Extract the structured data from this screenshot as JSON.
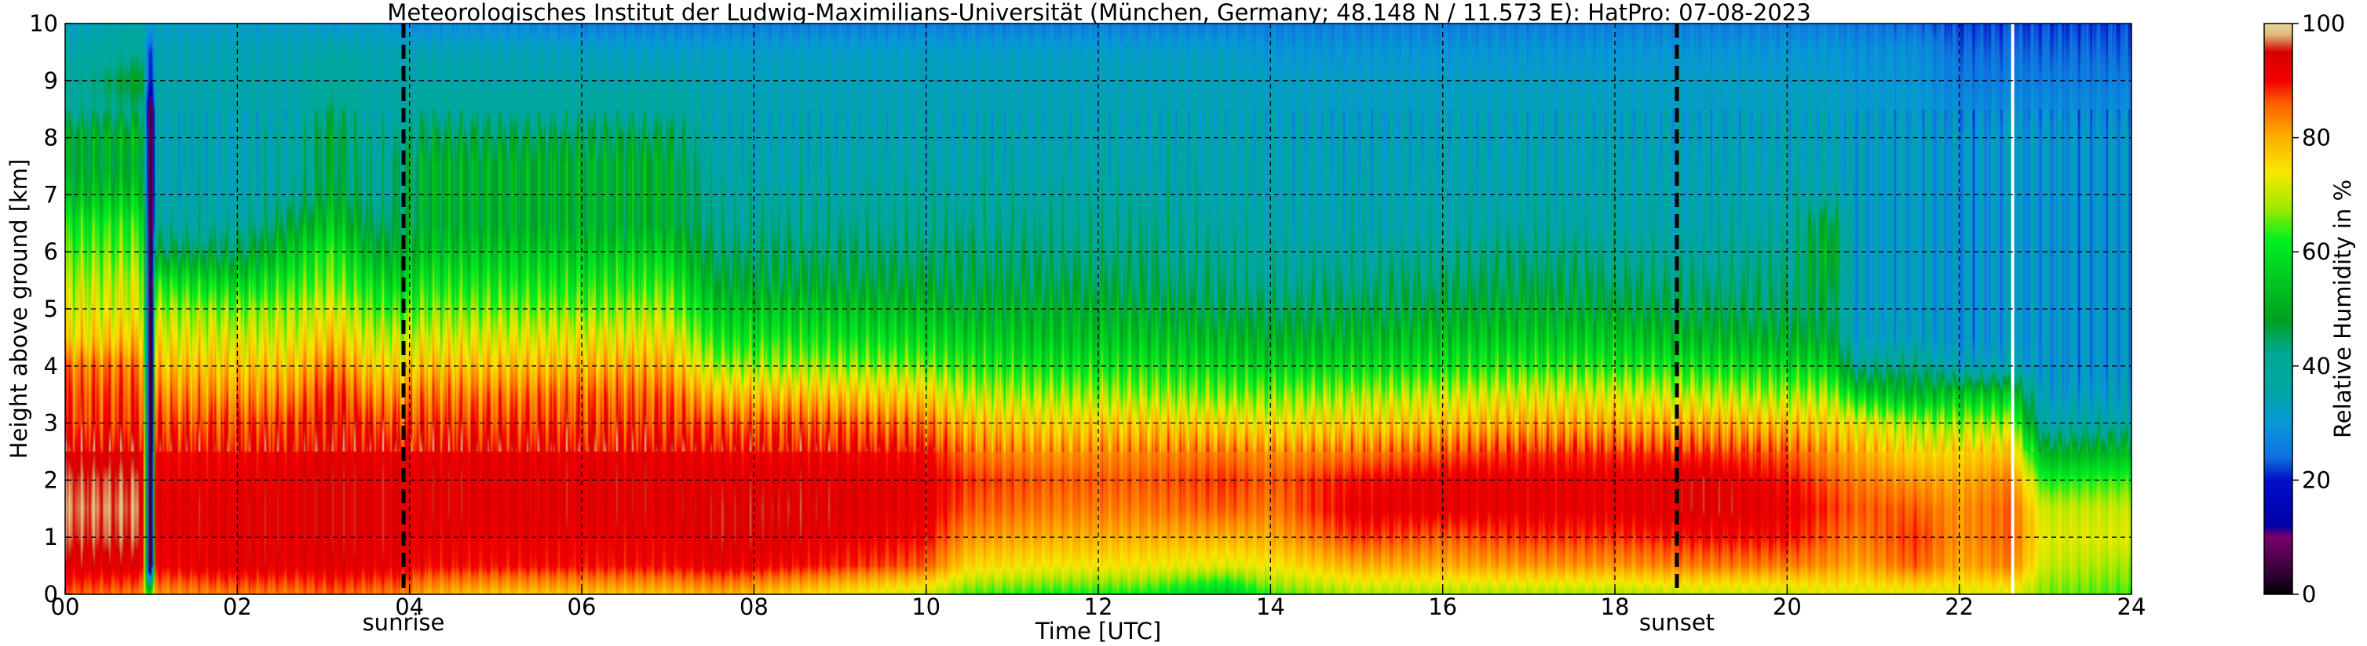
{
  "chart_data": {
    "type": "heatmap",
    "title": "Meteorologisches Institut der Ludwig-Maximilians-Universität (München, Germany; 48.148 N / 11.573 E):    HatPro: 07-08-2023",
    "xlabel": "Time [UTC]",
    "ylabel": "Height above ground [km]",
    "colorbar_label": "Relative Humidity in %",
    "xlim": [
      0,
      24
    ],
    "ylim": [
      0,
      10
    ],
    "x_ticks": [
      0,
      2,
      4,
      6,
      8,
      10,
      12,
      14,
      16,
      18,
      20,
      22,
      24
    ],
    "x_tick_labels": [
      "00",
      "02",
      "04",
      "06",
      "08",
      "10",
      "12",
      "14",
      "16",
      "18",
      "20",
      "22",
      "24"
    ],
    "y_ticks": [
      0,
      1,
      2,
      3,
      4,
      5,
      6,
      7,
      8,
      9,
      10
    ],
    "y_tick_labels": [
      "0",
      "1",
      "2",
      "3",
      "4",
      "5",
      "6",
      "7",
      "8",
      "9",
      "10"
    ],
    "colorbar_range": [
      0,
      100
    ],
    "colorbar_ticks": [
      0,
      20,
      40,
      60,
      80,
      100
    ],
    "colorbar_tick_labels": [
      "0",
      "20",
      "40",
      "60",
      "80",
      "100"
    ],
    "grid": true,
    "colorscale": [
      {
        "value": 0,
        "color": "#000000"
      },
      {
        "value": 3,
        "color": "#2a0030"
      },
      {
        "value": 10,
        "color": "#7a006a"
      },
      {
        "value": 12,
        "color": "#0000a8"
      },
      {
        "value": 20,
        "color": "#0010c8"
      },
      {
        "value": 24,
        "color": "#1070e0"
      },
      {
        "value": 30,
        "color": "#0898d8"
      },
      {
        "value": 36,
        "color": "#00a6a0"
      },
      {
        "value": 42,
        "color": "#00a898"
      },
      {
        "value": 48,
        "color": "#00a020"
      },
      {
        "value": 55,
        "color": "#00c820"
      },
      {
        "value": 62,
        "color": "#00f020"
      },
      {
        "value": 68,
        "color": "#a8e800"
      },
      {
        "value": 74,
        "color": "#f8e800"
      },
      {
        "value": 80,
        "color": "#fcb000"
      },
      {
        "value": 86,
        "color": "#fc6000"
      },
      {
        "value": 90,
        "color": "#f40000"
      },
      {
        "value": 95,
        "color": "#d40000"
      },
      {
        "value": 98,
        "color": "#e0b878"
      },
      {
        "value": 100,
        "color": "#e8d8a0"
      }
    ],
    "time_keys": [
      0,
      0.9,
      0.97,
      1.0,
      1.05,
      2.0,
      2.7,
      3.1,
      3.6,
      3.9,
      4.2,
      5.0,
      6.0,
      7.0,
      7.6,
      8.5,
      10.0,
      10.5,
      11.5,
      12.5,
      13.5,
      14.0,
      15.0,
      16.0,
      17.0,
      18.0,
      19.0,
      20.0,
      20.5,
      20.8,
      21.5,
      22.0,
      22.6,
      23.0,
      24.0
    ],
    "profile_heights_km": [
      0,
      0.5,
      1.0,
      1.5,
      2.0,
      2.5,
      3.0,
      3.5,
      4.0,
      4.5,
      5.0,
      5.5,
      6.0,
      6.5,
      7.0,
      7.5,
      8.0,
      8.5,
      9.0,
      9.5,
      10.0
    ],
    "profiles": [
      [
        86,
        93,
        96,
        97,
        96,
        93,
        88,
        87,
        84,
        75,
        72,
        68,
        64,
        60,
        52,
        48,
        48,
        40,
        38,
        34,
        32
      ],
      [
        84,
        93,
        96,
        97,
        96,
        93,
        89,
        87,
        84,
        78,
        72,
        70,
        66,
        62,
        55,
        50,
        52,
        44,
        50,
        42,
        36
      ],
      [
        52,
        10,
        10,
        10,
        10,
        10,
        10,
        10,
        10,
        10,
        10,
        10,
        10,
        10,
        10,
        10,
        10,
        10,
        20,
        20,
        30
      ],
      [
        66,
        1,
        1,
        1,
        1,
        1,
        1,
        1,
        1,
        1,
        1,
        1,
        1,
        1,
        1,
        1,
        1,
        1,
        20,
        22,
        32
      ],
      [
        82,
        91,
        92,
        93,
        92,
        91,
        87,
        83,
        78,
        73,
        68,
        60,
        46,
        38,
        36,
        35,
        35,
        35,
        35,
        34,
        32
      ],
      [
        84,
        93,
        93,
        93,
        92,
        91,
        87,
        82,
        77,
        72,
        66,
        56,
        45,
        38,
        36,
        35,
        35,
        35,
        35,
        34,
        32
      ],
      [
        84,
        92,
        93,
        93,
        93,
        91,
        88,
        83,
        78,
        72,
        68,
        62,
        56,
        48,
        40,
        38,
        38,
        35,
        35,
        34,
        32
      ],
      [
        86,
        93,
        94,
        94,
        94,
        93,
        91,
        89,
        84,
        78,
        72,
        66,
        62,
        55,
        50,
        48,
        48,
        44,
        40,
        36,
        30
      ],
      [
        84,
        92,
        93,
        93,
        93,
        92,
        88,
        82,
        76,
        70,
        64,
        58,
        50,
        44,
        40,
        40,
        38,
        36,
        35,
        34,
        32
      ],
      [
        84,
        92,
        93,
        93,
        93,
        92,
        87,
        82,
        76,
        70,
        63,
        56,
        50,
        46,
        44,
        44,
        40,
        36,
        35,
        34,
        28
      ],
      [
        80,
        90,
        92,
        93,
        93,
        92,
        88,
        84,
        78,
        72,
        66,
        60,
        54,
        50,
        50,
        50,
        46,
        40,
        36,
        34,
        28
      ],
      [
        78,
        90,
        92,
        93,
        93,
        92,
        88,
        84,
        78,
        72,
        66,
        60,
        55,
        50,
        50,
        50,
        46,
        38,
        35,
        34,
        28
      ],
      [
        78,
        90,
        92,
        93,
        93,
        92,
        88,
        85,
        79,
        73,
        66,
        60,
        55,
        50,
        50,
        50,
        46,
        38,
        35,
        33,
        26
      ],
      [
        78,
        90,
        92,
        93,
        93,
        92,
        88,
        85,
        80,
        74,
        68,
        62,
        56,
        50,
        50,
        50,
        46,
        38,
        35,
        32,
        26
      ],
      [
        80,
        92,
        94,
        94,
        93,
        91,
        86,
        78,
        68,
        60,
        54,
        48,
        44,
        40,
        38,
        36,
        35,
        34,
        33,
        32,
        26
      ],
      [
        76,
        90,
        93,
        94,
        93,
        91,
        86,
        78,
        68,
        60,
        54,
        48,
        44,
        40,
        38,
        36,
        35,
        34,
        33,
        32,
        26
      ],
      [
        70,
        86,
        90,
        92,
        92,
        90,
        84,
        76,
        66,
        58,
        52,
        47,
        43,
        40,
        38,
        36,
        35,
        34,
        33,
        32,
        26
      ],
      [
        64,
        76,
        82,
        86,
        88,
        84,
        78,
        70,
        62,
        56,
        50,
        46,
        44,
        40,
        38,
        36,
        35,
        34,
        33,
        32,
        26
      ],
      [
        62,
        74,
        80,
        84,
        86,
        82,
        76,
        68,
        60,
        54,
        50,
        46,
        42,
        40,
        38,
        36,
        35,
        34,
        33,
        32,
        26
      ],
      [
        62,
        74,
        80,
        84,
        86,
        83,
        77,
        68,
        60,
        54,
        49,
        45,
        42,
        40,
        38,
        36,
        35,
        34,
        33,
        32,
        26
      ],
      [
        55,
        72,
        80,
        86,
        88,
        84,
        76,
        66,
        58,
        52,
        46,
        42,
        40,
        38,
        36,
        36,
        35,
        34,
        33,
        32,
        26
      ],
      [
        64,
        74,
        80,
        84,
        86,
        82,
        74,
        66,
        57,
        50,
        45,
        40,
        38,
        36,
        35,
        35,
        34,
        33,
        32,
        30,
        26
      ],
      [
        68,
        80,
        88,
        92,
        90,
        84,
        76,
        68,
        58,
        52,
        46,
        42,
        38,
        36,
        35,
        34,
        33,
        32,
        32,
        30,
        26
      ],
      [
        68,
        80,
        86,
        92,
        92,
        86,
        78,
        70,
        60,
        54,
        48,
        44,
        40,
        37,
        36,
        35,
        34,
        33,
        32,
        30,
        26
      ],
      [
        68,
        82,
        88,
        92,
        92,
        88,
        80,
        72,
        62,
        55,
        50,
        46,
        42,
        38,
        36,
        35,
        34,
        33,
        32,
        30,
        26
      ],
      [
        68,
        82,
        88,
        92,
        92,
        88,
        80,
        72,
        62,
        55,
        48,
        44,
        40,
        37,
        36,
        35,
        34,
        33,
        32,
        30,
        26
      ],
      [
        70,
        84,
        90,
        94,
        94,
        88,
        80,
        70,
        60,
        52,
        46,
        42,
        38,
        36,
        35,
        34,
        33,
        32,
        32,
        30,
        26
      ],
      [
        70,
        84,
        90,
        92,
        90,
        86,
        78,
        68,
        58,
        50,
        45,
        42,
        40,
        38,
        36,
        35,
        34,
        33,
        32,
        30,
        26
      ],
      [
        72,
        82,
        86,
        88,
        86,
        82,
        76,
        68,
        58,
        50,
        46,
        50,
        52,
        48,
        38,
        35,
        34,
        33,
        32,
        30,
        26
      ],
      [
        72,
        80,
        84,
        86,
        84,
        80,
        74,
        58,
        40,
        33,
        32,
        32,
        32,
        32,
        32,
        32,
        32,
        31,
        30,
        29,
        25
      ],
      [
        72,
        86,
        88,
        86,
        82,
        76,
        68,
        52,
        42,
        33,
        32,
        32,
        32,
        32,
        32,
        32,
        32,
        31,
        30,
        29,
        24
      ],
      [
        72,
        80,
        82,
        82,
        80,
        76,
        68,
        55,
        34,
        30,
        30,
        30,
        30,
        30,
        30,
        30,
        30,
        28,
        26,
        24,
        22
      ],
      [
        72,
        84,
        86,
        86,
        84,
        78,
        68,
        55,
        34,
        30,
        30,
        30,
        30,
        30,
        30,
        30,
        30,
        28,
        26,
        24,
        22
      ],
      [
        66,
        70,
        72,
        70,
        62,
        50,
        36,
        32,
        30,
        30,
        30,
        30,
        30,
        30,
        30,
        30,
        30,
        28,
        26,
        24,
        22
      ],
      [
        64,
        68,
        72,
        70,
        64,
        52,
        38,
        32,
        30,
        30,
        30,
        30,
        30,
        30,
        30,
        30,
        30,
        28,
        26,
        24,
        22
      ]
    ],
    "missing_data_times": [
      22.62
    ],
    "vertical_markers": [
      {
        "x": 3.93,
        "label": "sunrise"
      },
      {
        "x": 18.72,
        "label": "sunset"
      }
    ]
  }
}
